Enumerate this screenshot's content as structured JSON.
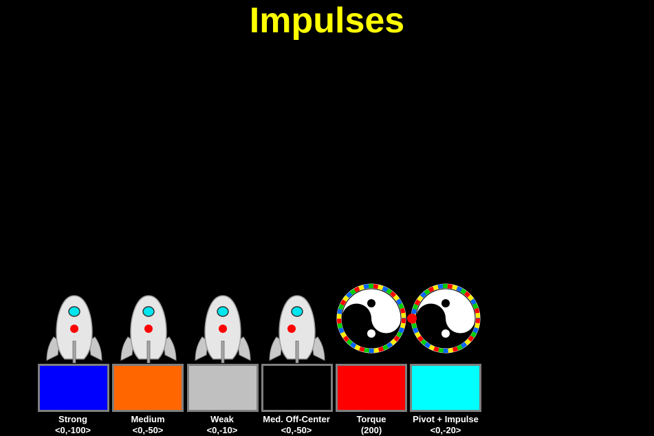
{
  "title": "Impulses",
  "colors": {
    "background": "#000000",
    "title": "#ffff00",
    "label": "#ffffff",
    "pad_border": "#7f7f7f"
  },
  "actors": [
    {
      "kind": "rocket",
      "icon": "rocket-icon"
    },
    {
      "kind": "rocket",
      "icon": "rocket-icon"
    },
    {
      "kind": "rocket",
      "icon": "rocket-icon"
    },
    {
      "kind": "rocket",
      "icon": "rocket-icon"
    },
    {
      "kind": "yin-yang wheel",
      "icon": "yin-yang-wheel-icon"
    },
    {
      "kind": "yin-yang wheel",
      "icon": "yin-yang-wheel-icon"
    }
  ],
  "pivot_marker_color": "#ff0000",
  "buttons": [
    {
      "name": "Strong",
      "value": "<0,-100>",
      "color": "#0000ff"
    },
    {
      "name": "Medium",
      "value": "<0,-50>",
      "color": "#ff6600"
    },
    {
      "name": "Weak",
      "value": "<0,-10>",
      "color": "#c0c0c0"
    },
    {
      "name": "Med. Off-Center",
      "value": "<0,-50>",
      "color": "#000000"
    },
    {
      "name": "Torque",
      "value": "(200)",
      "color": "#ff0000"
    },
    {
      "name": "Pivot + Impulse",
      "value": "<0,-20>",
      "color": "#00ffff"
    }
  ]
}
